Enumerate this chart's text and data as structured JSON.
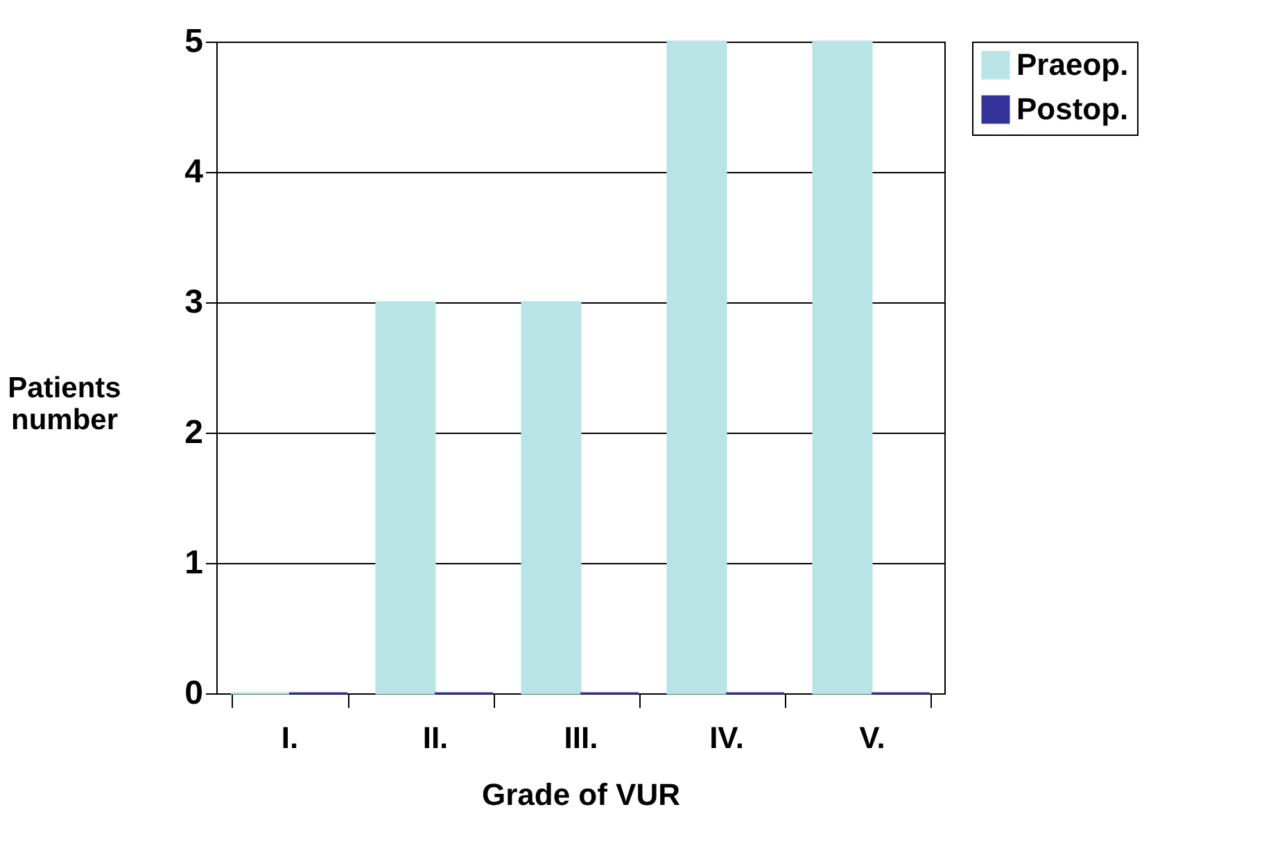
{
  "chart_data": {
    "type": "bar",
    "xlabel": "Grade of VUR",
    "ylabel": "Patients number",
    "categories": [
      "I.",
      "II.",
      "III.",
      "IV.",
      "V."
    ],
    "series": [
      {
        "name": "Praeop.",
        "color": "#b8e4e6",
        "values": [
          0,
          3,
          3,
          5,
          5
        ]
      },
      {
        "name": "Postop.",
        "color": "#333399",
        "values": [
          0,
          0,
          0,
          0,
          0
        ]
      }
    ],
    "ylim": [
      0,
      5
    ],
    "yticks": [
      0,
      1,
      2,
      3,
      4,
      5
    ],
    "grid": "y",
    "legend": "right"
  }
}
